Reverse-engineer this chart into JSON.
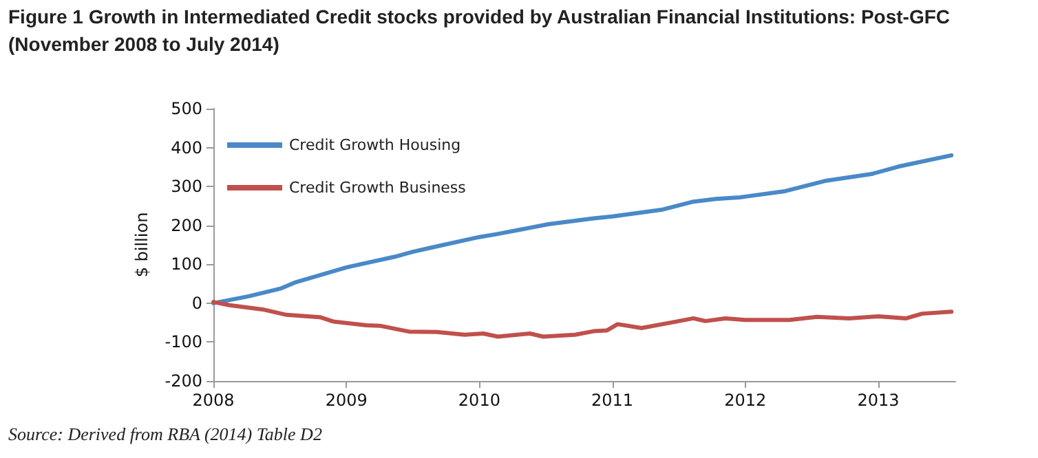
{
  "chart_data": {
    "type": "line",
    "title": "Figure 1 Growth in Intermediated Credit stocks provided by Australian Financial Institutions: Post-GFC (November 2008 to July 2014)",
    "ylabel": "$ billion",
    "annotations": [
      "Source: Derived from RBA (2014) Table D2"
    ],
    "xlim": [
      2008,
      2013.58
    ],
    "xticks": [
      2008,
      2009,
      2010,
      2011,
      2012,
      2013
    ],
    "ylim": [
      -200,
      500
    ],
    "yticks": [
      -200,
      -100,
      0,
      100,
      200,
      300,
      400,
      500
    ],
    "grid": false,
    "legend": "top left",
    "marker": "none",
    "line_style": "solid",
    "series": [
      {
        "name": "Credit Growth Housing",
        "color": "#4a89c8",
        "x": [
          2008,
          2008.27,
          2008.51,
          2008.62,
          2009,
          2009.36,
          2009.5,
          2009.64,
          2010,
          2010.14,
          2010.52,
          2010.86,
          2011,
          2011.37,
          2011.61,
          2011.78,
          2011.96,
          2012,
          2012.3,
          2012.61,
          2012.95,
          2013.15,
          2013.55
        ],
        "values": [
          0,
          18,
          38,
          54,
          92,
          119,
          132,
          143,
          170,
          178,
          203,
          218,
          223,
          240,
          261,
          268,
          272,
          274,
          288,
          315,
          332,
          351,
          380
        ]
      },
      {
        "name": "Credit Growth Business",
        "color": "#c0504d",
        "x": [
          2008,
          2008.12,
          2008.37,
          2008.55,
          2008.8,
          2008.9,
          2009.15,
          2009.25,
          2009.47,
          2009.68,
          2009.89,
          2010.03,
          2010.14,
          2010.38,
          2010.48,
          2010.72,
          2010.86,
          2010.96,
          2011.04,
          2011.22,
          2011.44,
          2011.61,
          2011.7,
          2011.85,
          2012,
          2012.33,
          2012.54,
          2012.78,
          2013,
          2013.21,
          2013.33,
          2013.55
        ],
        "values": [
          3,
          -5,
          -16,
          -30,
          -36,
          -47,
          -57,
          -58,
          -73,
          -74,
          -81,
          -78,
          -86,
          -78,
          -86,
          -81,
          -72,
          -70,
          -54,
          -64,
          -50,
          -39,
          -46,
          -39,
          -43,
          -43,
          -35,
          -39,
          -34,
          -39,
          -27,
          -22
        ]
      }
    ]
  }
}
